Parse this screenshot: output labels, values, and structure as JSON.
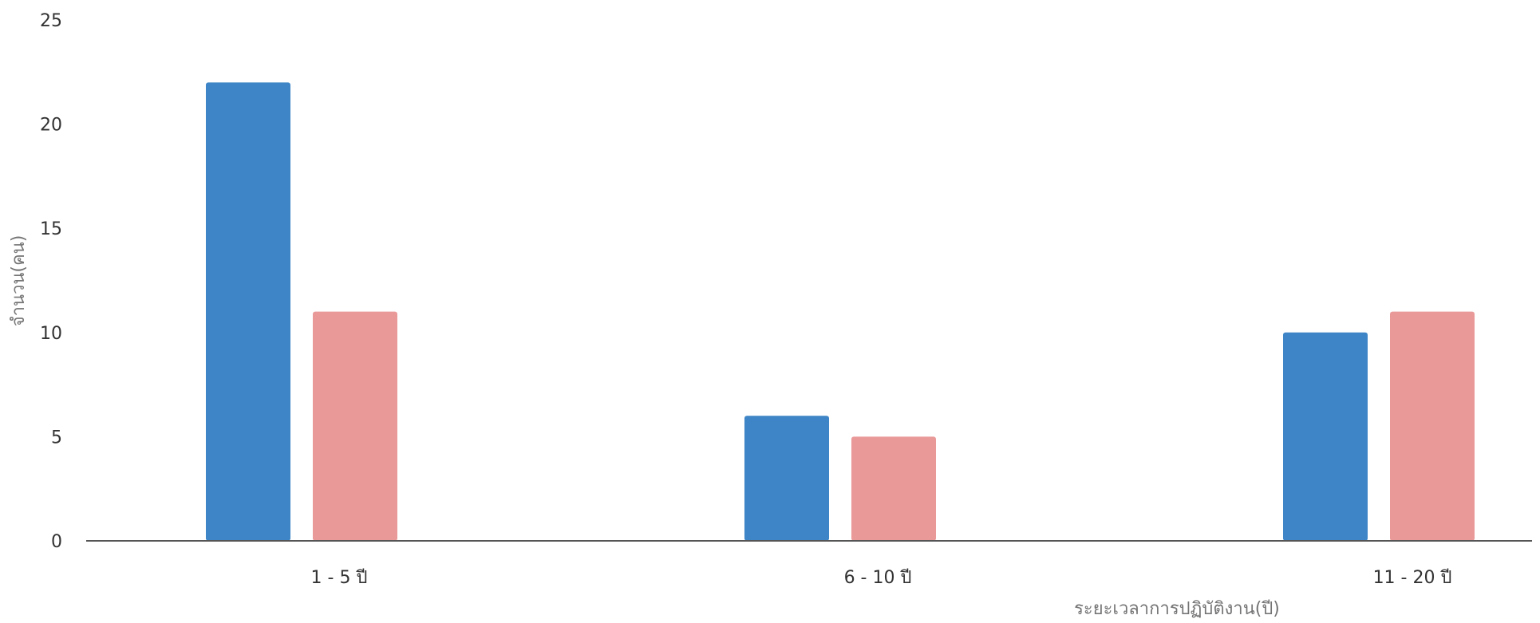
{
  "chart_data": {
    "type": "bar",
    "title": "",
    "xlabel": "ระยะเวลาการปฏิบัติงาน(ปี)",
    "ylabel": "จำนวน(คน)",
    "categories": [
      "1 - 5 ปี",
      "6 - 10 ปี",
      "11 - 20 ปี"
    ],
    "series": [
      {
        "color": "#3d85c6",
        "values": [
          22,
          6,
          10
        ]
      },
      {
        "color": "#ea9999",
        "values": [
          11,
          5,
          11
        ]
      }
    ],
    "ylim": [
      0,
      25
    ],
    "yticks": [
      "0",
      "5",
      "10",
      "15",
      "20",
      "25"
    ],
    "grid": false,
    "legend": "none"
  }
}
